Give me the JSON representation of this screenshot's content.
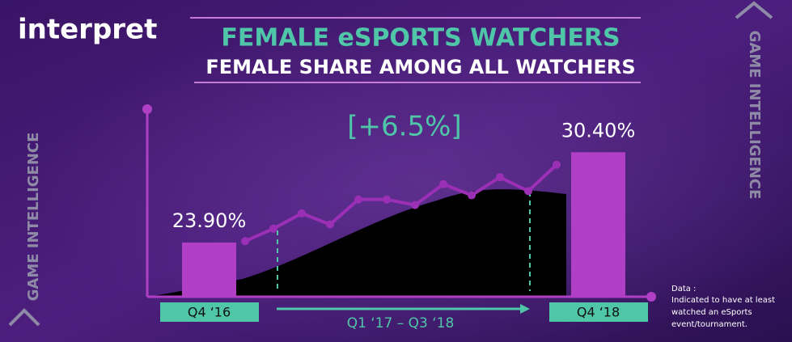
{
  "brand": "interpret",
  "side_label_left": "GAME INTELLIGENCE",
  "side_label_right": "GAME INTELLIGENCE",
  "note": [
    "Data :",
    "Indicated to have at least",
    "watched an eSports",
    "event/tournament."
  ],
  "chart_data": {
    "type": "bar",
    "title": "FEMALE eSPORTS WATCHERS",
    "subtitle": "FEMALE SHARE AMONG ALL WATCHERS",
    "annotation": "[+6.5%]",
    "period_label": "Q1  ‘17 – Q3 ‘18",
    "categories": [
      "Q4 ‘16",
      "Q4 ‘18"
    ],
    "values": [
      23.9,
      30.4
    ],
    "value_labels": [
      "23.90%",
      "30.40%"
    ],
    "color": "#b03fc6",
    "ylim": [
      20,
      33.5
    ],
    "trend": {
      "color": "#9b2fb5",
      "categories": [
        null,
        null,
        null,
        null,
        null,
        null,
        null,
        null,
        null,
        null,
        null,
        null
      ],
      "values": [
        24.0,
        24.9,
        26.0,
        25.2,
        27.0,
        27.0,
        26.6,
        28.1,
        27.3,
        28.6,
        27.6,
        29.5
      ]
    }
  }
}
